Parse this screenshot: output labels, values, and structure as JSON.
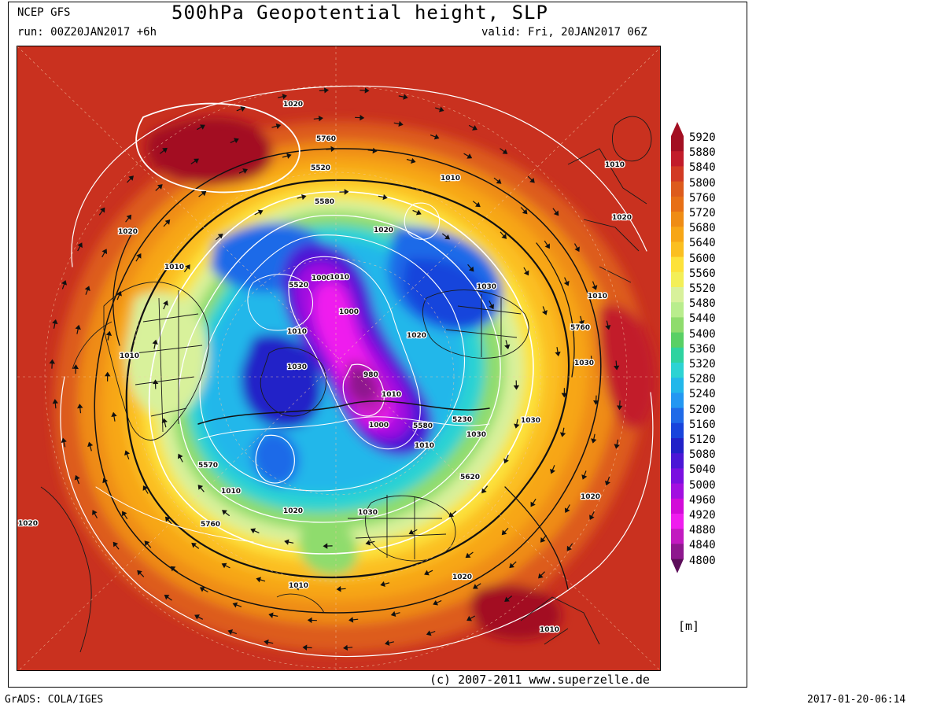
{
  "header": {
    "source": "NCEP GFS",
    "title": "500hPa Geopotential height, SLP",
    "run": "run: 00Z20JAN2017 +6h",
    "valid": "valid: Fri, 20JAN2017 06Z"
  },
  "footer": {
    "copyright": "(c) 2007-2011 www.superzelle.de",
    "grads": "GrADS: COLA/IGES",
    "timestamp": "2017-01-20-06:14"
  },
  "legend": {
    "unit": "[m]",
    "levels": [
      "5920",
      "5880",
      "5840",
      "5800",
      "5760",
      "5720",
      "5680",
      "5640",
      "5600",
      "5560",
      "5520",
      "5480",
      "5440",
      "5400",
      "5360",
      "5320",
      "5280",
      "5240",
      "5200",
      "5160",
      "5120",
      "5080",
      "5040",
      "5000",
      "4960",
      "4920",
      "4880",
      "4840",
      "4800"
    ],
    "colors": [
      "#a30f22",
      "#c21c2a",
      "#d23a23",
      "#dd5b1c",
      "#e76f16",
      "#ef8c14",
      "#f7a616",
      "#fbbf20",
      "#fde23a",
      "#f3ef57",
      "#d8f19b",
      "#b9ed8d",
      "#8fdc6d",
      "#59d065",
      "#2ed3a0",
      "#2cd3d3",
      "#22b7ea",
      "#2397f2",
      "#1f6ae8",
      "#1844dc",
      "#2121c8",
      "#4b16d6",
      "#7a0fe0",
      "#a20fe0",
      "#d20bd8",
      "#ef1dee",
      "#c21ac0",
      "#8e188e",
      "#5c0e5a"
    ]
  },
  "map": {
    "contour_labels": [
      {
        "text": "1020",
        "tone": "white"
      },
      {
        "text": "5760",
        "tone": "white"
      },
      {
        "text": "5520",
        "tone": "white"
      },
      {
        "text": "1010",
        "tone": "white"
      },
      {
        "text": "1010",
        "tone": "white"
      },
      {
        "text": "1020",
        "tone": "white"
      },
      {
        "text": "5580",
        "tone": "white"
      },
      {
        "text": "1020",
        "tone": "white"
      },
      {
        "text": "1010",
        "tone": "white"
      },
      {
        "text": "1000",
        "tone": "white"
      },
      {
        "text": "5520",
        "tone": "white"
      },
      {
        "text": "1010",
        "tone": "white"
      },
      {
        "text": "1000",
        "tone": "white"
      },
      {
        "text": "1030",
        "tone": "white"
      },
      {
        "text": "1020",
        "tone": "white"
      },
      {
        "text": "1010",
        "tone": "white"
      },
      {
        "text": "1030",
        "tone": "white"
      },
      {
        "text": "1000",
        "tone": "white"
      },
      {
        "text": "980",
        "tone": "white"
      },
      {
        "text": "1010",
        "tone": "white"
      },
      {
        "text": "5230",
        "tone": "white"
      },
      {
        "text": "1030",
        "tone": "white"
      },
      {
        "text": "5580",
        "tone": "white"
      },
      {
        "text": "1010",
        "tone": "white"
      },
      {
        "text": "1030",
        "tone": "white"
      },
      {
        "text": "5570",
        "tone": "white"
      },
      {
        "text": "1010",
        "tone": "white"
      },
      {
        "text": "5620",
        "tone": "white"
      },
      {
        "text": "1020",
        "tone": "white"
      },
      {
        "text": "1030",
        "tone": "white"
      },
      {
        "text": "5760",
        "tone": "white"
      },
      {
        "text": "1020",
        "tone": "white"
      },
      {
        "text": "1010",
        "tone": "white"
      },
      {
        "text": "1020",
        "tone": "white"
      },
      {
        "text": "1010",
        "tone": "white"
      },
      {
        "text": "1020",
        "tone": "white"
      },
      {
        "text": "5760",
        "tone": "white"
      },
      {
        "text": "1010",
        "tone": "white"
      },
      {
        "text": "1020",
        "tone": "white"
      },
      {
        "text": "1030",
        "tone": "white"
      },
      {
        "text": "1010",
        "tone": "white"
      }
    ]
  }
}
